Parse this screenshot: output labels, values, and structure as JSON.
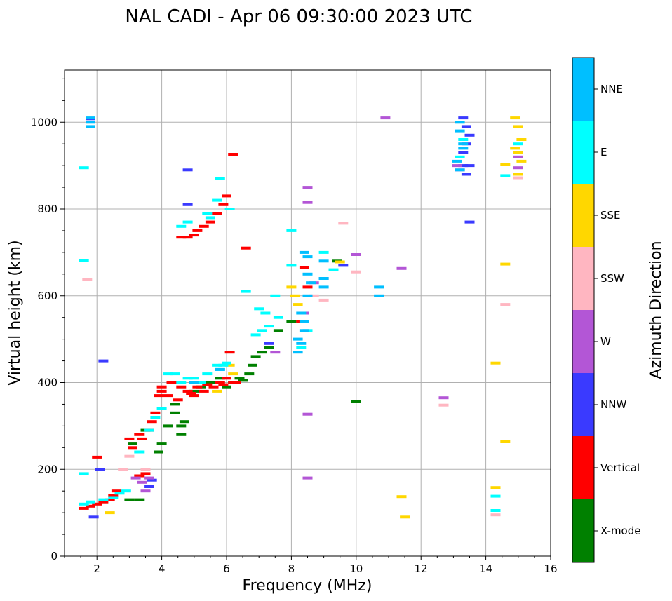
{
  "chart_data": {
    "type": "scatter",
    "title": "NAL CADI - Apr 06 09:30:00 2023 UTC",
    "xlabel": "Frequency (MHz)",
    "ylabel": "Virtual height (km)",
    "xlim": [
      1,
      16
    ],
    "ylim": [
      0,
      1120
    ],
    "xticks": [
      2,
      4,
      6,
      8,
      10,
      12,
      14,
      16
    ],
    "yticks": [
      0,
      200,
      400,
      600,
      800,
      1000
    ],
    "grid": true,
    "colorbar": {
      "label": "Azimuth Direction",
      "categories": [
        {
          "name": "X-mode",
          "color": "#008000"
        },
        {
          "name": "Vertical",
          "color": "#ff0000"
        },
        {
          "name": "NNW",
          "color": "#3a3aff"
        },
        {
          "name": "W",
          "color": "#b356d6"
        },
        {
          "name": "SSW",
          "color": "#ffb6c1"
        },
        {
          "name": "SSE",
          "color": "#ffd700"
        },
        {
          "name": "E",
          "color": "#00ffff"
        },
        {
          "name": "NNE",
          "color": "#00bfff"
        }
      ]
    },
    "series": [
      {
        "name": "X-mode",
        "points": [
          [
            3.0,
            130
          ],
          [
            3.3,
            130
          ],
          [
            3.1,
            260
          ],
          [
            3.5,
            290
          ],
          [
            3.9,
            240
          ],
          [
            4.0,
            260
          ],
          [
            4.2,
            300
          ],
          [
            4.4,
            330
          ],
          [
            4.4,
            350
          ],
          [
            4.6,
            280
          ],
          [
            4.6,
            300
          ],
          [
            4.7,
            310
          ],
          [
            5.0,
            380
          ],
          [
            5.2,
            390
          ],
          [
            5.4,
            400
          ],
          [
            5.6,
            400
          ],
          [
            5.8,
            410
          ],
          [
            6.0,
            390
          ],
          [
            6.2,
            400
          ],
          [
            6.4,
            410
          ],
          [
            6.5,
            405
          ],
          [
            6.7,
            420
          ],
          [
            6.8,
            440
          ],
          [
            6.9,
            460
          ],
          [
            7.1,
            470
          ],
          [
            7.3,
            480
          ],
          [
            7.6,
            520
          ],
          [
            8.0,
            540
          ],
          [
            9.4,
            680
          ],
          [
            10.0,
            357
          ]
        ]
      },
      {
        "name": "Vertical",
        "points": [
          [
            1.6,
            110
          ],
          [
            1.8,
            115
          ],
          [
            2.0,
            120
          ],
          [
            2.2,
            125
          ],
          [
            2.4,
            130
          ],
          [
            2.5,
            140
          ],
          [
            2.6,
            150
          ],
          [
            3.0,
            270
          ],
          [
            3.1,
            250
          ],
          [
            3.3,
            280
          ],
          [
            3.4,
            270
          ],
          [
            3.6,
            290
          ],
          [
            3.7,
            310
          ],
          [
            3.8,
            330
          ],
          [
            3.9,
            370
          ],
          [
            4.0,
            380
          ],
          [
            4.0,
            390
          ],
          [
            4.2,
            370
          ],
          [
            4.3,
            400
          ],
          [
            4.5,
            360
          ],
          [
            4.6,
            390
          ],
          [
            4.8,
            380
          ],
          [
            4.9,
            375
          ],
          [
            5.0,
            370
          ],
          [
            5.1,
            390
          ],
          [
            5.3,
            380
          ],
          [
            5.4,
            395
          ],
          [
            5.6,
            390
          ],
          [
            5.8,
            400
          ],
          [
            5.9,
            395
          ],
          [
            6.0,
            410
          ],
          [
            6.1,
            470
          ],
          [
            6.2,
            400
          ],
          [
            6.3,
            400
          ],
          [
            6.6,
            710
          ],
          [
            4.6,
            735
          ],
          [
            4.8,
            735
          ],
          [
            5.0,
            740
          ],
          [
            5.1,
            750
          ],
          [
            5.3,
            760
          ],
          [
            5.5,
            770
          ],
          [
            5.7,
            790
          ],
          [
            5.9,
            810
          ],
          [
            6.0,
            830
          ],
          [
            6.2,
            926
          ],
          [
            3.5,
            190
          ],
          [
            3.3,
            185
          ],
          [
            8.4,
            665
          ],
          [
            8.3,
            540
          ],
          [
            8.5,
            620
          ],
          [
            2.0,
            228
          ]
        ]
      },
      {
        "name": "NNW",
        "points": [
          [
            1.8,
            1008
          ],
          [
            4.8,
            890
          ],
          [
            4.8,
            810
          ],
          [
            3.6,
            160
          ],
          [
            3.7,
            175
          ],
          [
            13.3,
            1010
          ],
          [
            13.4,
            990
          ],
          [
            13.5,
            970
          ],
          [
            13.4,
            950
          ],
          [
            13.3,
            930
          ],
          [
            13.5,
            900
          ],
          [
            13.4,
            880
          ],
          [
            13.5,
            770
          ],
          [
            13.3,
            900
          ],
          [
            2.2,
            450
          ],
          [
            2.1,
            200
          ],
          [
            1.9,
            90
          ],
          [
            9.6,
            670
          ],
          [
            7.3,
            490
          ]
        ]
      },
      {
        "name": "W",
        "points": [
          [
            3.2,
            180
          ],
          [
            3.4,
            170
          ],
          [
            3.6,
            180
          ],
          [
            3.5,
            150
          ],
          [
            8.5,
            850
          ],
          [
            8.5,
            815
          ],
          [
            8.5,
            327
          ],
          [
            8.5,
            180
          ],
          [
            10.9,
            1010
          ],
          [
            11.4,
            663
          ],
          [
            12.7,
            365
          ],
          [
            13.1,
            900
          ],
          [
            13.2,
            890
          ],
          [
            15.0,
            895
          ],
          [
            15.0,
            920
          ],
          [
            10.0,
            695
          ],
          [
            8.7,
            630
          ],
          [
            9.0,
            640
          ],
          [
            7.5,
            470
          ],
          [
            8.4,
            560
          ]
        ]
      },
      {
        "name": "SSW",
        "points": [
          [
            1.7,
            637
          ],
          [
            2.8,
            200
          ],
          [
            8.7,
            600
          ],
          [
            9.0,
            590
          ],
          [
            9.6,
            767
          ],
          [
            10.0,
            655
          ],
          [
            12.7,
            348
          ],
          [
            14.3,
            95
          ],
          [
            14.6,
            580
          ],
          [
            15.0,
            872
          ],
          [
            3.0,
            230
          ],
          [
            3.5,
            200
          ]
        ]
      },
      {
        "name": "SSE",
        "points": [
          [
            2.4,
            100
          ],
          [
            5.7,
            380
          ],
          [
            6.1,
            440
          ],
          [
            6.2,
            420
          ],
          [
            8.1,
            600
          ],
          [
            8.2,
            580
          ],
          [
            8.0,
            620
          ],
          [
            11.4,
            137
          ],
          [
            11.5,
            90
          ],
          [
            14.3,
            158
          ],
          [
            14.3,
            445
          ],
          [
            14.6,
            265
          ],
          [
            14.6,
            673
          ],
          [
            14.6,
            902
          ],
          [
            14.9,
            1010
          ],
          [
            15.0,
            990
          ],
          [
            15.1,
            960
          ],
          [
            14.9,
            940
          ],
          [
            15.0,
            930
          ],
          [
            15.1,
            910
          ],
          [
            15.0,
            880
          ],
          [
            9.5,
            678
          ]
        ]
      },
      {
        "name": "E",
        "points": [
          [
            1.6,
            895
          ],
          [
            1.6,
            682
          ],
          [
            1.6,
            190
          ],
          [
            1.6,
            120
          ],
          [
            1.8,
            125
          ],
          [
            2.2,
            130
          ],
          [
            2.5,
            135
          ],
          [
            2.7,
            145
          ],
          [
            2.9,
            150
          ],
          [
            3.3,
            240
          ],
          [
            3.6,
            290
          ],
          [
            3.8,
            320
          ],
          [
            4.0,
            340
          ],
          [
            4.2,
            420
          ],
          [
            4.4,
            420
          ],
          [
            4.6,
            400
          ],
          [
            4.8,
            410
          ],
          [
            5.0,
            410
          ],
          [
            5.2,
            400
          ],
          [
            5.4,
            420
          ],
          [
            5.7,
            440
          ],
          [
            5.8,
            430
          ],
          [
            5.9,
            440
          ],
          [
            6.0,
            445
          ],
          [
            5.8,
            870
          ],
          [
            5.7,
            820
          ],
          [
            5.5,
            780
          ],
          [
            5.4,
            790
          ],
          [
            4.8,
            770
          ],
          [
            4.6,
            760
          ],
          [
            6.1,
            800
          ],
          [
            6.6,
            610
          ],
          [
            7.0,
            570
          ],
          [
            7.2,
            560
          ],
          [
            7.5,
            600
          ],
          [
            7.6,
            550
          ],
          [
            7.3,
            530
          ],
          [
            8.0,
            750
          ],
          [
            8.0,
            670
          ],
          [
            8.3,
            480
          ],
          [
            8.5,
            520
          ],
          [
            9.0,
            700
          ],
          [
            9.3,
            660
          ],
          [
            13.3,
            960
          ],
          [
            13.2,
            920
          ],
          [
            14.3,
            138
          ],
          [
            14.3,
            105
          ],
          [
            14.6,
            877
          ],
          [
            15.0,
            950
          ],
          [
            7.1,
            520
          ],
          [
            6.9,
            510
          ]
        ]
      },
      {
        "name": "NNE",
        "points": [
          [
            1.8,
            1000
          ],
          [
            1.8,
            1010
          ],
          [
            1.8,
            990
          ],
          [
            8.2,
            500
          ],
          [
            8.3,
            490
          ],
          [
            8.4,
            520
          ],
          [
            8.2,
            470
          ],
          [
            8.4,
            700
          ],
          [
            8.5,
            690
          ],
          [
            8.5,
            600
          ],
          [
            8.5,
            650
          ],
          [
            9.0,
            620
          ],
          [
            9.0,
            640
          ],
          [
            9.0,
            680
          ],
          [
            10.7,
            600
          ],
          [
            10.7,
            620
          ],
          [
            13.2,
            1000
          ],
          [
            13.2,
            980
          ],
          [
            13.3,
            950
          ],
          [
            13.3,
            940
          ],
          [
            13.1,
            910
          ],
          [
            13.2,
            890
          ],
          [
            8.3,
            560
          ],
          [
            8.6,
            630
          ],
          [
            8.4,
            540
          ],
          [
            5.0,
            400
          ],
          [
            5.8,
            430
          ]
        ]
      }
    ]
  }
}
